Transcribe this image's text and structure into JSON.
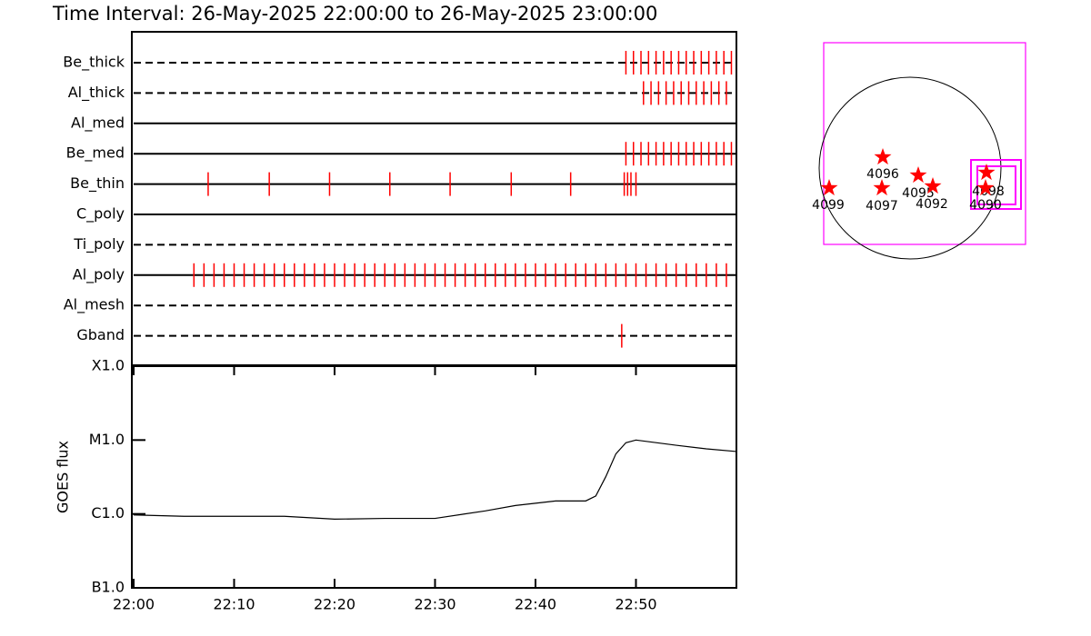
{
  "title": "Time Interval: 26-May-2025 22:00:00 to 26-May-2025 23:00:00",
  "chart_data": [
    {
      "type": "timeline",
      "color": "#ff0000",
      "xlim": [
        "22:00:00",
        "23:00:00"
      ],
      "rows": [
        {
          "name": "Be_thick",
          "line": "dashed",
          "events": [
            "22:49:00",
            "22:49:45",
            "22:50:30",
            "22:51:15",
            "22:52:00",
            "22:52:45",
            "22:53:30",
            "22:54:15",
            "22:55:00",
            "22:55:45",
            "22:56:30",
            "22:57:15",
            "22:58:00",
            "22:58:45",
            "22:59:30"
          ]
        },
        {
          "name": "Al_thick",
          "line": "dashed",
          "events": [
            "22:50:45",
            "22:51:30",
            "22:52:15",
            "22:53:00",
            "22:53:45",
            "22:54:30",
            "22:55:15",
            "22:56:00",
            "22:56:45",
            "22:57:30",
            "22:58:15",
            "22:59:00"
          ]
        },
        {
          "name": "Al_med",
          "line": "solid",
          "events": []
        },
        {
          "name": "Be_med",
          "line": "solid",
          "events": [
            "22:49:00",
            "22:49:45",
            "22:50:30",
            "22:51:15",
            "22:52:00",
            "22:52:45",
            "22:53:30",
            "22:54:15",
            "22:55:00",
            "22:55:45",
            "22:56:30",
            "22:57:15",
            "22:58:00",
            "22:58:45",
            "22:59:30"
          ]
        },
        {
          "name": "Be_thin",
          "line": "solid",
          "events": [
            "22:07:25",
            "22:13:30",
            "22:19:30",
            "22:25:30",
            "22:31:30",
            "22:37:35",
            "22:43:30",
            "22:48:50",
            "22:49:10",
            "22:49:30",
            "22:50:00"
          ]
        },
        {
          "name": "C_poly",
          "line": "solid",
          "events": []
        },
        {
          "name": "Ti_poly",
          "line": "dashed",
          "events": []
        },
        {
          "name": "Al_poly",
          "line": "solid",
          "events": [
            "22:06:00",
            "22:07:00",
            "22:08:00",
            "22:09:00",
            "22:10:00",
            "22:11:00",
            "22:12:00",
            "22:13:00",
            "22:14:00",
            "22:15:00",
            "22:16:00",
            "22:17:00",
            "22:18:00",
            "22:19:00",
            "22:20:00",
            "22:21:00",
            "22:22:00",
            "22:23:00",
            "22:24:00",
            "22:25:00",
            "22:26:00",
            "22:27:00",
            "22:28:00",
            "22:29:00",
            "22:30:00",
            "22:31:00",
            "22:32:00",
            "22:33:00",
            "22:34:00",
            "22:35:00",
            "22:36:00",
            "22:37:00",
            "22:38:00",
            "22:39:00",
            "22:40:00",
            "22:41:00",
            "22:42:00",
            "22:43:00",
            "22:44:00",
            "22:45:00",
            "22:46:00",
            "22:47:00",
            "22:48:00",
            "22:49:00",
            "22:50:00",
            "22:51:00",
            "22:52:00",
            "22:53:00",
            "22:54:00",
            "22:55:00",
            "22:56:00",
            "22:57:00",
            "22:58:00",
            "22:59:00"
          ]
        },
        {
          "name": "Al_mesh",
          "line": "dashed",
          "events": []
        },
        {
          "name": "Gband",
          "line": "dashed",
          "events": [
            "22:48:35"
          ]
        }
      ]
    },
    {
      "type": "line",
      "color": "#000000",
      "ylabel": "GOES flux",
      "ylog": true,
      "xlim": [
        "22:00:00",
        "23:00:00"
      ],
      "xticks": [
        "22:00",
        "22:10",
        "22:20",
        "22:30",
        "22:40",
        "22:50"
      ],
      "ylim": [
        1e-07,
        0.0001
      ],
      "yticks": [
        {
          "value": 1e-07,
          "label": "B1.0"
        },
        {
          "value": 1e-06,
          "label": "C1.0"
        },
        {
          "value": 1e-05,
          "label": "M1.0"
        },
        {
          "value": 0.0001,
          "label": "X1.0"
        }
      ],
      "x": [
        "22:00:00",
        "22:05:00",
        "22:10:00",
        "22:15:00",
        "22:20:00",
        "22:25:00",
        "22:30:00",
        "22:35:00",
        "22:38:00",
        "22:42:00",
        "22:45:00",
        "22:46:00",
        "22:47:00",
        "22:48:00",
        "22:49:00",
        "22:50:00",
        "22:54:00",
        "22:57:00",
        "23:00:00"
      ],
      "values": [
        9.7e-07,
        9.3e-07,
        9.3e-07,
        9.3e-07,
        8.5e-07,
        8.7e-07,
        8.7e-07,
        1.1e-06,
        1.3e-06,
        1.5e-06,
        1.5e-06,
        1.75e-06,
        3.2e-06,
        6.5e-06,
        9.2e-06,
        1e-05,
        8.5e-06,
        7.6e-06,
        7e-06
      ]
    },
    {
      "type": "map",
      "color": "#ff0000",
      "box_color": "#ff00ff",
      "regions": [
        {
          "label": "4099"
        },
        {
          "label": "4096"
        },
        {
          "label": "4097"
        },
        {
          "label": "4095"
        },
        {
          "label": "4092"
        },
        {
          "label": "4098"
        },
        {
          "label": "4090"
        }
      ]
    }
  ]
}
